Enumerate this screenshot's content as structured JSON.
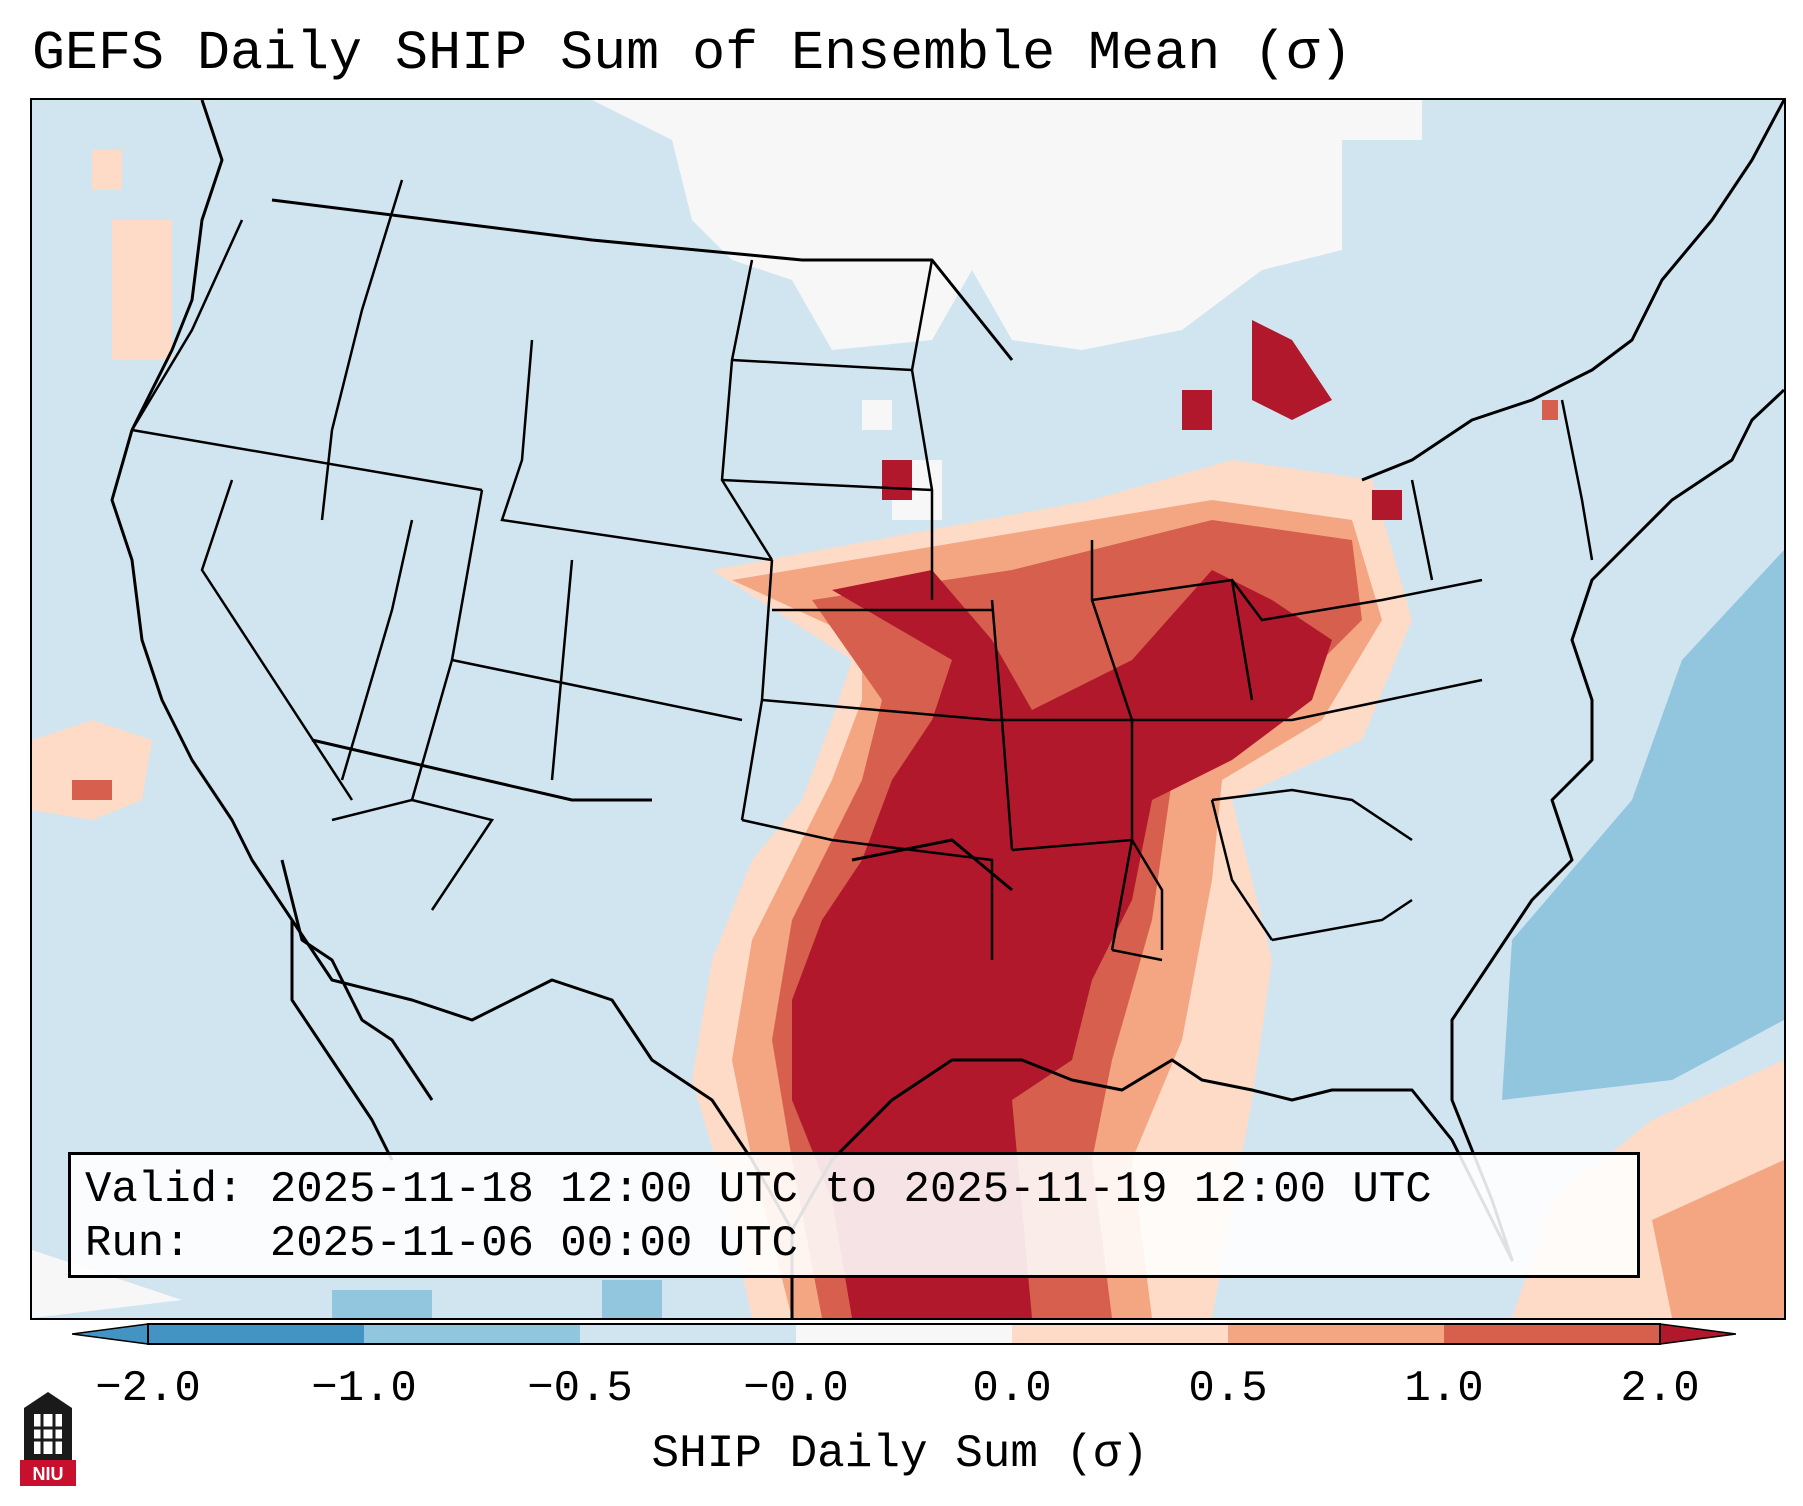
{
  "title": "GEFS Daily SHIP Sum of Ensemble Mean (σ)",
  "info": {
    "valid_label": "Valid:",
    "valid_text": "2025-11-18 12:00 UTC to 2025-11-19 12:00 UTC",
    "run_label": "Run:",
    "run_text": "2025-11-06 00:00 UTC"
  },
  "colorbar": {
    "label": "SHIP Daily Sum (σ)",
    "ticks": [
      "−2.0",
      "−1.0",
      "−0.5",
      "−0.0",
      "0.0",
      "0.5",
      "1.0",
      "2.0"
    ],
    "colors": [
      "#4393c3",
      "#92c5de",
      "#d1e5f0",
      "#f7f7f7",
      "#fddbc7",
      "#f4a582",
      "#d6604d",
      "#b2182b"
    ],
    "extend": "both"
  },
  "map": {
    "region": "CONUS",
    "background_class": "-0.5 to -0.0",
    "features": [
      "state-borders",
      "coastlines",
      "country-borders"
    ]
  },
  "logo": {
    "text": "NIU"
  }
}
